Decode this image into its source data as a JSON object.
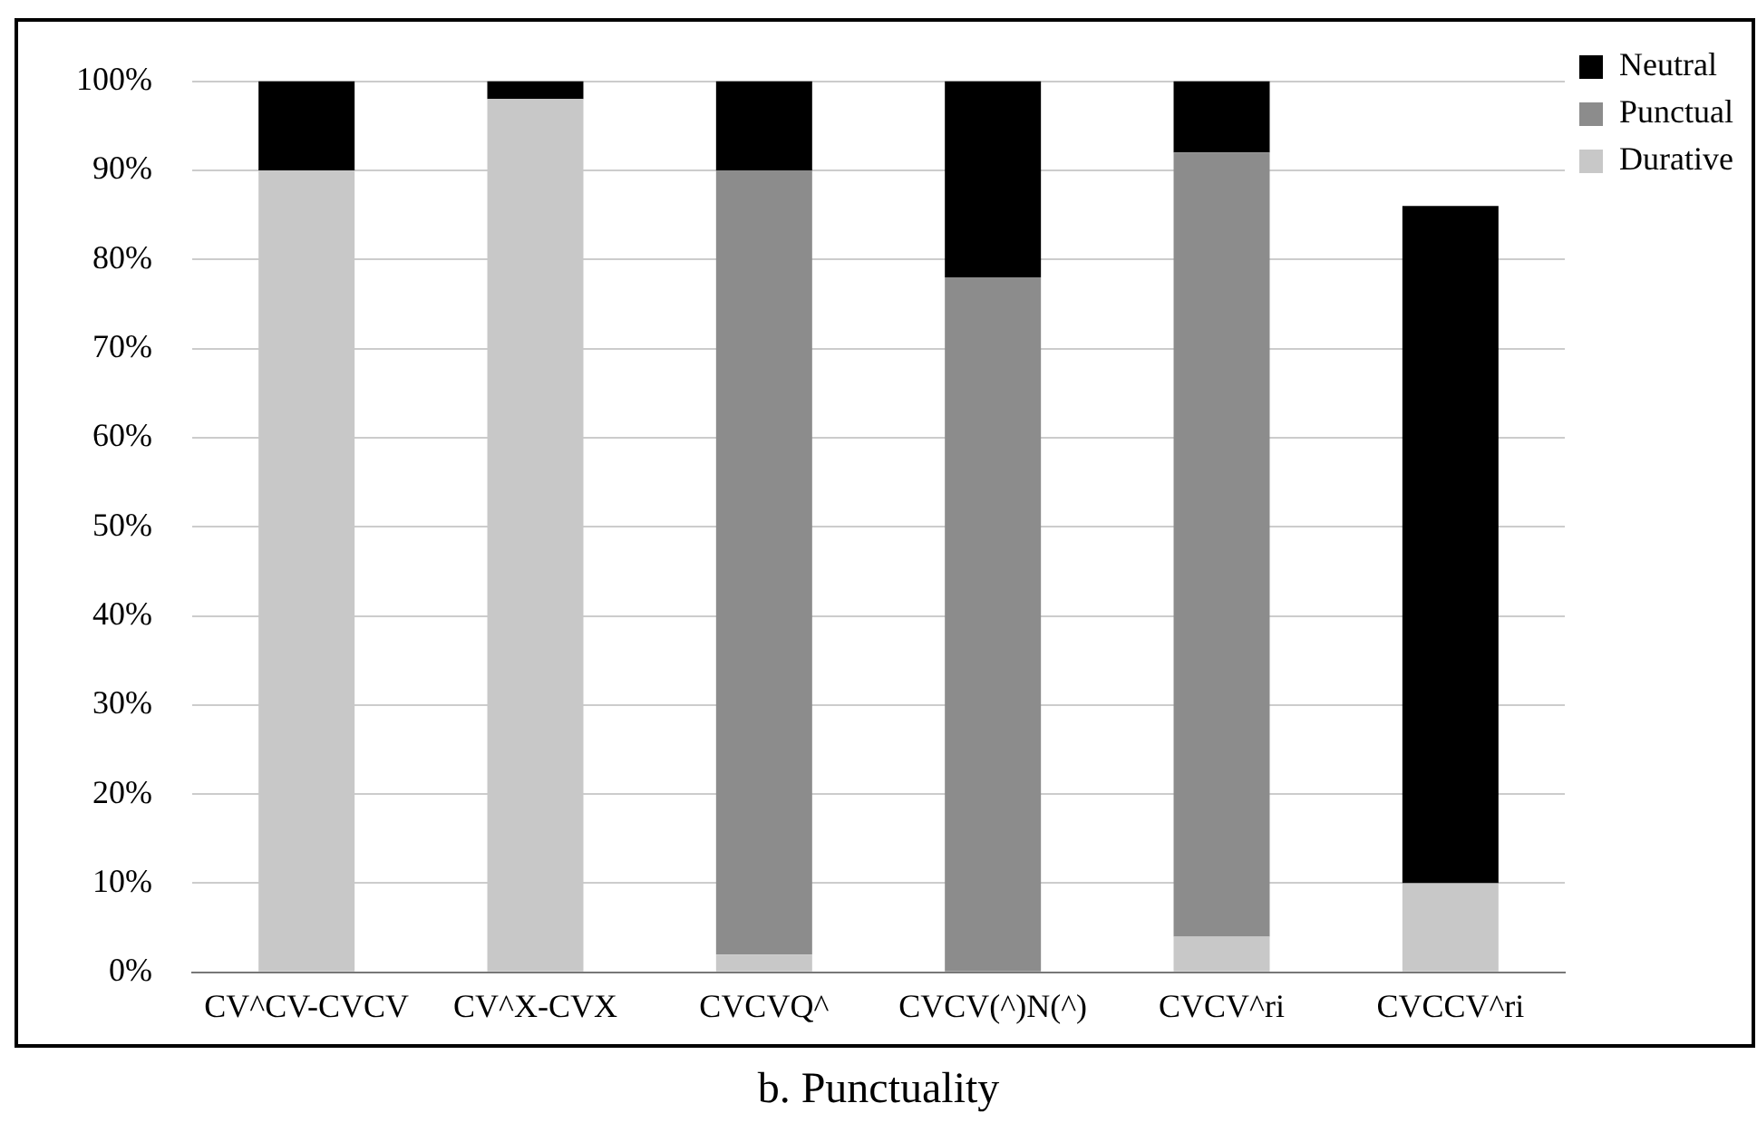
{
  "chart_data": {
    "type": "bar",
    "title": "b. Punctuality",
    "categories": [
      "CV^CV-CVCV",
      "CV^X-CVX",
      "CVCVQ^",
      "CVCV(^)N(^)",
      "CVCV^ri",
      "CVCCV^ri"
    ],
    "stacked": true,
    "ylim": [
      0,
      100
    ],
    "yticks": [
      {
        "value": 0,
        "label": "0%"
      },
      {
        "value": 10,
        "label": "10%"
      },
      {
        "value": 20,
        "label": "20%"
      },
      {
        "value": 30,
        "label": "30%"
      },
      {
        "value": 40,
        "label": "40%"
      },
      {
        "value": 50,
        "label": "50%"
      },
      {
        "value": 60,
        "label": "60%"
      },
      {
        "value": 70,
        "label": "70%"
      },
      {
        "value": 80,
        "label": "80%"
      },
      {
        "value": 90,
        "label": "90%"
      },
      {
        "value": 100,
        "label": "100%"
      }
    ],
    "grid": "y",
    "legend": "top right",
    "series": [
      {
        "name": "Durative",
        "color": "#c8c8c8",
        "values": [
          90,
          98,
          2,
          0,
          4,
          10
        ]
      },
      {
        "name": "Punctual",
        "color": "#8c8c8c",
        "values": [
          0,
          0,
          88,
          78,
          88,
          0
        ]
      },
      {
        "name": "Neutral",
        "color": "#000000",
        "values": [
          10,
          2,
          10,
          22,
          8,
          76
        ]
      }
    ]
  }
}
